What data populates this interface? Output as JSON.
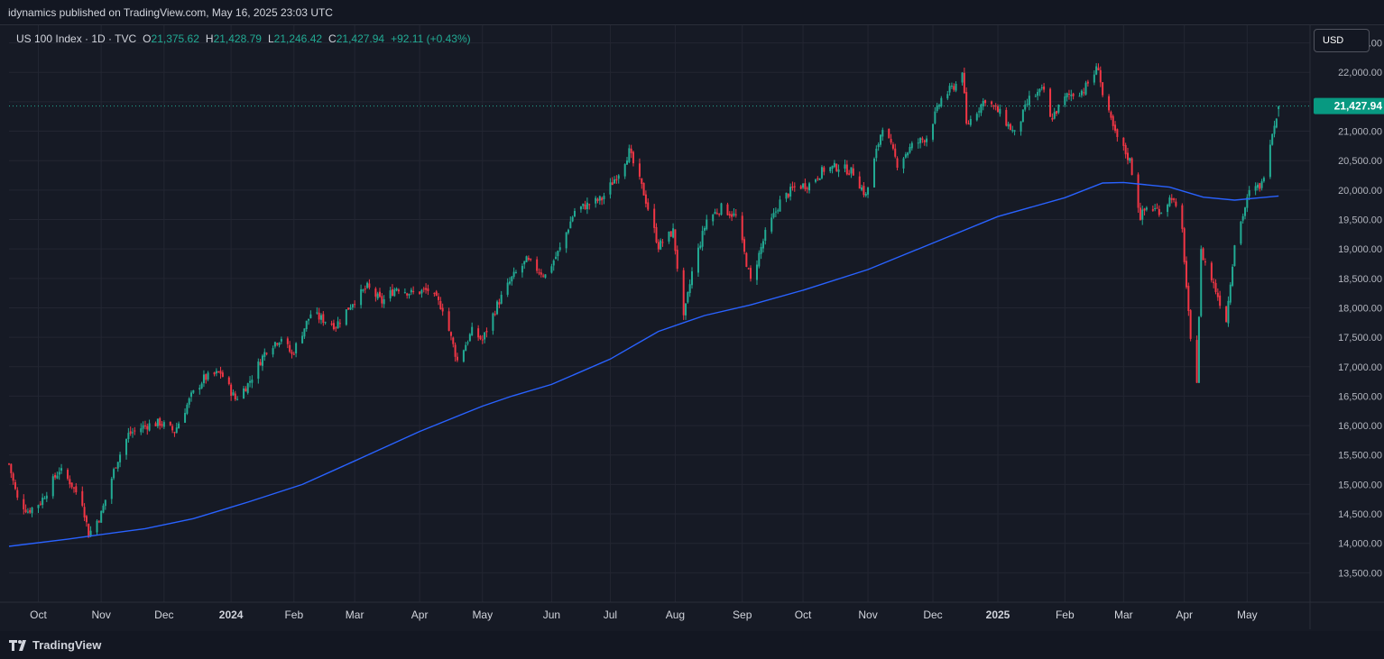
{
  "header": {
    "published": "idynamics published on TradingView.com, May 16, 2025 23:03 UTC"
  },
  "legend": {
    "symbol": "US 100 Index · 1D · TVC",
    "open_label": "O",
    "open": "21,375.62",
    "high_label": "H",
    "high": "21,428.79",
    "low_label": "L",
    "low": "21,246.42",
    "close_label": "C",
    "close": "21,427.94",
    "change": "+92.11 (+0.43%)"
  },
  "currency": "USD",
  "last_price_label": "21,427.94",
  "footer": {
    "brand": "TradingView"
  },
  "colors": {
    "up": "#22ab94",
    "down": "#f23645",
    "ma": "#2962ff",
    "price_tag": "#089981",
    "grid": "#232632",
    "background": "#161a25"
  },
  "chart_data": {
    "type": "candlestick",
    "interval": "1D",
    "y_ticks": [
      "13,500.00",
      "14,000.00",
      "14,500.00",
      "15,000.00",
      "15,500.00",
      "16,000.00",
      "16,500.00",
      "17,000.00",
      "17,500.00",
      "18,000.00",
      "18,500.00",
      "19,000.00",
      "19,500.00",
      "20,000.00",
      "20,500.00",
      "21,000.00",
      "21,500.00",
      "22,000.00",
      "22,500.00"
    ],
    "y_range": [
      13000,
      22800
    ],
    "x_range": [
      "2023-09-18",
      "2025-05-31"
    ],
    "x_ticks": [
      {
        "label": "Oct",
        "date": "2023-10-02"
      },
      {
        "label": "Nov",
        "date": "2023-11-01"
      },
      {
        "label": "Dec",
        "date": "2023-12-01"
      },
      {
        "label": "2024",
        "date": "2024-01-02",
        "bold": true
      },
      {
        "label": "Feb",
        "date": "2024-02-01"
      },
      {
        "label": "Mar",
        "date": "2024-03-01"
      },
      {
        "label": "Apr",
        "date": "2024-04-01"
      },
      {
        "label": "May",
        "date": "2024-05-01"
      },
      {
        "label": "Jun",
        "date": "2024-06-03"
      },
      {
        "label": "Jul",
        "date": "2024-07-01"
      },
      {
        "label": "Aug",
        "date": "2024-08-01"
      },
      {
        "label": "Sep",
        "date": "2024-09-02"
      },
      {
        "label": "Oct",
        "date": "2024-10-01"
      },
      {
        "label": "Nov",
        "date": "2024-11-01"
      },
      {
        "label": "Dec",
        "date": "2024-12-02"
      },
      {
        "label": "2025",
        "date": "2025-01-02",
        "bold": true
      },
      {
        "label": "Feb",
        "date": "2025-02-03"
      },
      {
        "label": "Mar",
        "date": "2025-03-03"
      },
      {
        "label": "Apr",
        "date": "2025-04-01"
      },
      {
        "label": "May",
        "date": "2025-05-01"
      }
    ],
    "price_path": [
      [
        "2023-09-18",
        15350
      ],
      [
        "2023-09-22",
        14750
      ],
      [
        "2023-09-27",
        14550
      ],
      [
        "2023-10-03",
        14700
      ],
      [
        "2023-10-12",
        15250
      ],
      [
        "2023-10-17",
        15050
      ],
      [
        "2023-10-23",
        14700
      ],
      [
        "2023-10-26",
        14150
      ],
      [
        "2023-11-01",
        14500
      ],
      [
        "2023-11-08",
        15350
      ],
      [
        "2023-11-14",
        15850
      ],
      [
        "2023-11-22",
        16000
      ],
      [
        "2023-11-29",
        16050
      ],
      [
        "2023-12-06",
        15900
      ],
      [
        "2023-12-14",
        16500
      ],
      [
        "2023-12-20",
        16800
      ],
      [
        "2023-12-28",
        16900
      ],
      [
        "2024-01-04",
        16450
      ],
      [
        "2024-01-10",
        16700
      ],
      [
        "2024-01-19",
        17300
      ],
      [
        "2024-01-26",
        17500
      ],
      [
        "2024-01-31",
        17200
      ],
      [
        "2024-02-09",
        17900
      ],
      [
        "2024-02-21",
        17700
      ],
      [
        "2024-02-29",
        18100
      ],
      [
        "2024-03-07",
        18350
      ],
      [
        "2024-03-14",
        18100
      ],
      [
        "2024-03-21",
        18350
      ],
      [
        "2024-03-28",
        18250
      ],
      [
        "2024-04-05",
        18300
      ],
      [
        "2024-04-12",
        18000
      ],
      [
        "2024-04-19",
        17100
      ],
      [
        "2024-04-26",
        17600
      ],
      [
        "2024-05-01",
        17450
      ],
      [
        "2024-05-08",
        18050
      ],
      [
        "2024-05-15",
        18500
      ],
      [
        "2024-05-22",
        18800
      ],
      [
        "2024-05-31",
        18550
      ],
      [
        "2024-06-07",
        19000
      ],
      [
        "2024-06-14",
        19650
      ],
      [
        "2024-06-20",
        19750
      ],
      [
        "2024-06-27",
        19850
      ],
      [
        "2024-07-05",
        20300
      ],
      [
        "2024-07-10",
        20650
      ],
      [
        "2024-07-17",
        19950
      ],
      [
        "2024-07-24",
        19050
      ],
      [
        "2024-07-31",
        19300
      ],
      [
        "2024-08-05",
        17800
      ],
      [
        "2024-08-09",
        18600
      ],
      [
        "2024-08-16",
        19500
      ],
      [
        "2024-08-23",
        19700
      ],
      [
        "2024-08-30",
        19550
      ],
      [
        "2024-09-06",
        18450
      ],
      [
        "2024-09-13",
        19250
      ],
      [
        "2024-09-20",
        19800
      ],
      [
        "2024-09-27",
        20050
      ],
      [
        "2024-10-04",
        20100
      ],
      [
        "2024-10-11",
        20350
      ],
      [
        "2024-10-18",
        20400
      ],
      [
        "2024-10-25",
        20300
      ],
      [
        "2024-10-31",
        19900
      ],
      [
        "2024-11-08",
        21100
      ],
      [
        "2024-11-15",
        20450
      ],
      [
        "2024-11-22",
        20750
      ],
      [
        "2024-11-29",
        20900
      ],
      [
        "2024-12-06",
        21550
      ],
      [
        "2024-12-13",
        21800
      ],
      [
        "2024-12-16",
        22050
      ],
      [
        "2024-12-18",
        21100
      ],
      [
        "2024-12-27",
        21550
      ],
      [
        "2025-01-03",
        21300
      ],
      [
        "2025-01-10",
        20950
      ],
      [
        "2025-01-17",
        21550
      ],
      [
        "2025-01-24",
        21700
      ],
      [
        "2025-01-27",
        21200
      ],
      [
        "2025-02-04",
        21600
      ],
      [
        "2025-02-12",
        21700
      ],
      [
        "2025-02-19",
        22100
      ],
      [
        "2025-02-21",
        21600
      ],
      [
        "2025-02-27",
        20950
      ],
      [
        "2025-03-06",
        20500
      ],
      [
        "2025-03-11",
        19550
      ],
      [
        "2025-03-14",
        19700
      ],
      [
        "2025-03-21",
        19650
      ],
      [
        "2025-03-26",
        19900
      ],
      [
        "2025-03-31",
        19300
      ],
      [
        "2025-04-04",
        17400
      ],
      [
        "2025-04-07",
        16800
      ],
      [
        "2025-04-09",
        18950
      ],
      [
        "2025-04-16",
        18300
      ],
      [
        "2025-04-21",
        17800
      ],
      [
        "2025-04-25",
        19100
      ],
      [
        "2025-05-02",
        19950
      ],
      [
        "2025-05-08",
        20100
      ],
      [
        "2025-05-12",
        20850
      ],
      [
        "2025-05-16",
        21428
      ]
    ],
    "ma_path": [
      [
        "2023-09-18",
        13950
      ],
      [
        "2023-10-16",
        14070
      ],
      [
        "2023-11-01",
        14150
      ],
      [
        "2023-11-22",
        14250
      ],
      [
        "2023-12-15",
        14420
      ],
      [
        "2024-01-10",
        14700
      ],
      [
        "2024-02-05",
        15000
      ],
      [
        "2024-03-01",
        15400
      ],
      [
        "2024-04-01",
        15900
      ],
      [
        "2024-05-01",
        16330
      ],
      [
        "2024-05-15",
        16500
      ],
      [
        "2024-06-03",
        16700
      ],
      [
        "2024-07-01",
        17130
      ],
      [
        "2024-07-24",
        17600
      ],
      [
        "2024-08-15",
        17870
      ],
      [
        "2024-09-06",
        18050
      ],
      [
        "2024-10-01",
        18300
      ],
      [
        "2024-11-01",
        18650
      ],
      [
        "2024-12-02",
        19100
      ],
      [
        "2025-01-02",
        19550
      ],
      [
        "2025-02-03",
        19870
      ],
      [
        "2025-02-21",
        20120
      ],
      [
        "2025-03-03",
        20130
      ],
      [
        "2025-03-25",
        20050
      ],
      [
        "2025-04-10",
        19880
      ],
      [
        "2025-04-25",
        19830
      ],
      [
        "2025-05-16",
        19900
      ]
    ],
    "last_close": 21427.94
  }
}
